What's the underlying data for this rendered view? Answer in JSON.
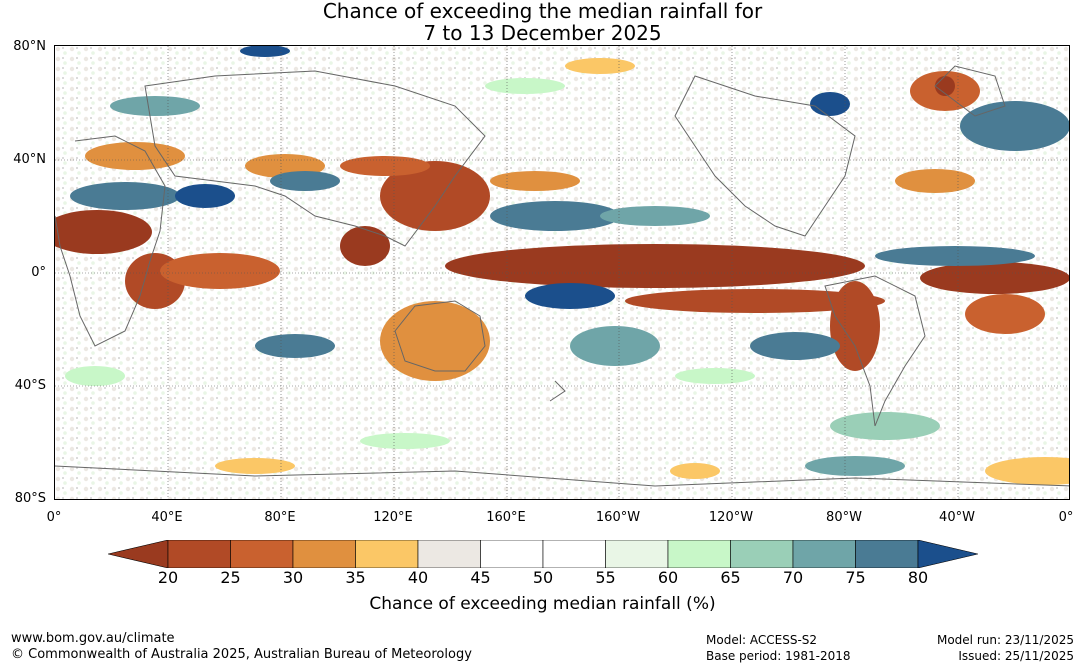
{
  "title": {
    "line1": "Chance of exceeding the median rainfall for",
    "line2": "7 to 13 December 2025"
  },
  "map": {
    "lat_labels": [
      "80°N",
      "40°N",
      "0°",
      "40°S",
      "80°S"
    ],
    "lon_labels": [
      "0°",
      "40°E",
      "80°E",
      "120°E",
      "160°E",
      "160°W",
      "120°W",
      "80°W",
      "40°W",
      "0°"
    ]
  },
  "legend": {
    "label": "Chance of exceeding median rainfall (%)",
    "ticks": [
      "20",
      "25",
      "30",
      "35",
      "40",
      "45",
      "50",
      "55",
      "60",
      "65",
      "70",
      "75",
      "80"
    ],
    "colors": [
      "#9a3a1f",
      "#b14a26",
      "#c9612f",
      "#e0903f",
      "#fbc766",
      "#ece8e3",
      "#ffffff",
      "#ffffff",
      "#e9f6e6",
      "#c8f7c8",
      "#9acfb7",
      "#6fa5a8",
      "#4a7b94",
      "#1b4f8c"
    ]
  },
  "footer": {
    "url": "www.bom.gov.au/climate",
    "copyright": "© Commonwealth of Australia 2025, Australian Bureau of Meteorology",
    "model": "Model: ACCESS-S2",
    "base_period": "Base period: 1981-2018",
    "model_run": "Model run: 23/11/2025",
    "issued": "Issued: 25/11/2025"
  }
}
